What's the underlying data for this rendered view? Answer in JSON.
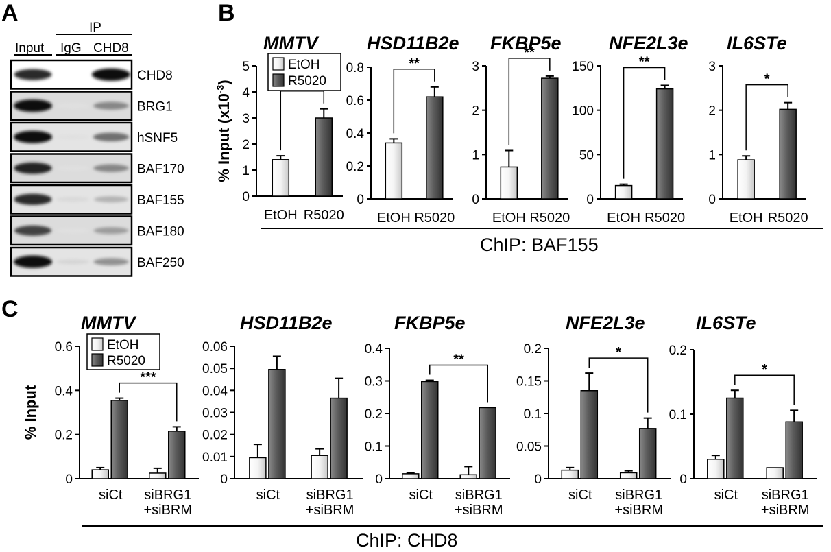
{
  "panels": {
    "A": "A",
    "B": "B",
    "C": "C"
  },
  "blot": {
    "headers": {
      "input": "Input",
      "ip": "IP",
      "igg": "IgG",
      "chd8": "CHD8"
    },
    "rows": [
      {
        "label": "CHD8",
        "input": 0.85,
        "igg": 0.0,
        "chd8": 1.0
      },
      {
        "label": "BRG1",
        "input": 1.0,
        "igg": 0.05,
        "chd8": 0.45
      },
      {
        "label": "hSNF5",
        "input": 1.0,
        "igg": 0.05,
        "chd8": 0.55
      },
      {
        "label": "BAF170",
        "input": 0.9,
        "igg": 0.05,
        "chd8": 0.45
      },
      {
        "label": "BAF155",
        "input": 0.85,
        "igg": 0.08,
        "chd8": 0.25
      },
      {
        "label": "BAF180",
        "input": 0.75,
        "igg": 0.05,
        "chd8": 0.35
      },
      {
        "label": "BAF250",
        "input": 1.0,
        "igg": 0.1,
        "chd8": 0.4
      }
    ]
  },
  "legend": {
    "etoh": "EtOH",
    "r5020": "R5020"
  },
  "colors": {
    "etoh": "#f2f2f2",
    "r5020": "#5a5a5a",
    "axis": "#000000"
  },
  "chart_data": [
    {
      "panel": "B",
      "type": "bar",
      "title": "MMTV",
      "ylabel": "% Input (x10-3)",
      "ylim": [
        0,
        5
      ],
      "yticks": [
        0,
        1,
        2,
        3,
        4,
        5
      ],
      "categories": [
        "EtOH",
        "R5020"
      ],
      "values": [
        1.4,
        3.0
      ],
      "errors": [
        0.15,
        0.35
      ],
      "significance": "*"
    },
    {
      "panel": "B",
      "type": "bar",
      "title": "HSD11B2e",
      "ylim": [
        0,
        0.8
      ],
      "yticks": [
        0,
        0.2,
        0.4,
        0.6,
        0.8
      ],
      "categories": [
        "EtOH",
        "R5020"
      ],
      "values": [
        0.34,
        0.62
      ],
      "errors": [
        0.025,
        0.06
      ],
      "significance": "**"
    },
    {
      "panel": "B",
      "type": "bar",
      "title": "FKBP5e",
      "ylim": [
        0,
        3
      ],
      "yticks": [
        0,
        1,
        2,
        3
      ],
      "categories": [
        "EtOH",
        "R5020"
      ],
      "values": [
        0.72,
        2.72
      ],
      "errors": [
        0.37,
        0.05
      ],
      "significance": "**"
    },
    {
      "panel": "B",
      "type": "bar",
      "title": "NFE2L3e",
      "ylim": [
        0,
        150
      ],
      "yticks": [
        0,
        50,
        100,
        150
      ],
      "categories": [
        "EtOH",
        "R5020"
      ],
      "values": [
        15,
        124
      ],
      "errors": [
        1.5,
        4
      ],
      "significance": "**"
    },
    {
      "panel": "B",
      "type": "bar",
      "title": "IL6STe",
      "ylim": [
        0,
        3
      ],
      "yticks": [
        0,
        1,
        2,
        3
      ],
      "categories": [
        "EtOH",
        "R5020"
      ],
      "values": [
        0.88,
        2.02
      ],
      "errors": [
        0.09,
        0.15
      ],
      "significance": "*"
    },
    {
      "panel": "C",
      "type": "bar",
      "title": "MMTV",
      "ylabel": "% Input",
      "ylim": [
        0,
        0.6
      ],
      "yticks": [
        0,
        0.2,
        0.4,
        0.6
      ],
      "categories": [
        "siCt",
        "siBRG1\n+siBRM"
      ],
      "series": [
        {
          "name": "EtOH",
          "values": [
            0.04,
            0.025
          ],
          "errors": [
            0.01,
            0.022
          ]
        },
        {
          "name": "R5020",
          "values": [
            0.355,
            0.215
          ],
          "errors": [
            0.01,
            0.02
          ]
        }
      ],
      "significance": "***"
    },
    {
      "panel": "C",
      "type": "bar",
      "title": "HSD11B2e",
      "ylim": [
        0,
        0.06
      ],
      "yticks": [
        0,
        0.01,
        0.02,
        0.03,
        0.04,
        0.05,
        0.06
      ],
      "categories": [
        "siCt",
        "siBRG1\n+siBRM"
      ],
      "series": [
        {
          "name": "EtOH",
          "values": [
            0.0095,
            0.0105
          ],
          "errors": [
            0.006,
            0.003
          ]
        },
        {
          "name": "R5020",
          "values": [
            0.0495,
            0.0365
          ],
          "errors": [
            0.006,
            0.009
          ]
        }
      ],
      "significance": ""
    },
    {
      "panel": "C",
      "type": "bar",
      "title": "FKBP5e",
      "ylim": [
        0,
        0.4
      ],
      "yticks": [
        0,
        0.1,
        0.2,
        0.3,
        0.4
      ],
      "categories": [
        "siCt",
        "siBRG1\n+siBRM"
      ],
      "series": [
        {
          "name": "EtOH",
          "values": [
            0.015,
            0.012
          ],
          "errors": [
            0.002,
            0.025
          ]
        },
        {
          "name": "R5020",
          "values": [
            0.298,
            0.218
          ],
          "errors": [
            0.004,
            0.0
          ]
        }
      ],
      "significance": "**"
    },
    {
      "panel": "C",
      "type": "bar",
      "title": "NFE2L3e",
      "ylim": [
        0,
        0.2
      ],
      "yticks": [
        0,
        0.05,
        0.1,
        0.15,
        0.2
      ],
      "categories": [
        "siCt",
        "siBRG1\n+siBRM"
      ],
      "series": [
        {
          "name": "EtOH",
          "values": [
            0.013,
            0.009
          ],
          "errors": [
            0.004,
            0.003
          ]
        },
        {
          "name": "R5020",
          "values": [
            0.135,
            0.077
          ],
          "errors": [
            0.027,
            0.016
          ]
        }
      ],
      "significance": "*"
    },
    {
      "panel": "C",
      "type": "bar",
      "title": "IL6STe",
      "ylim": [
        0,
        0.2
      ],
      "yticks": [
        0,
        0.1,
        0.2
      ],
      "categories": [
        "siCt",
        "siBRG1\n+siBRM"
      ],
      "series": [
        {
          "name": "EtOH",
          "values": [
            0.03,
            0.017
          ],
          "errors": [
            0.006,
            0.0
          ]
        },
        {
          "name": "R5020",
          "values": [
            0.125,
            0.088
          ],
          "errors": [
            0.012,
            0.018
          ]
        }
      ],
      "significance": "*"
    }
  ],
  "chip_labels": {
    "B": "ChIP: BAF155",
    "C": "ChIP: CHD8"
  }
}
